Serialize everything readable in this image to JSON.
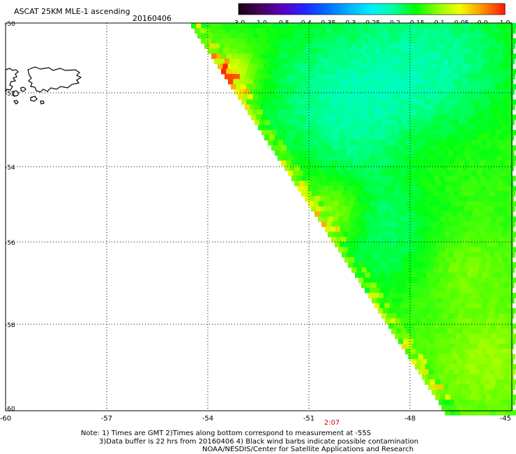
{
  "header": {
    "title": "ASCAT 25KM MLE-1 ascending",
    "date": "20160406"
  },
  "colorbar": {
    "labels": [
      "-3.0",
      "-1.0",
      "-0.5",
      "-0.4",
      "-0.35",
      "-0.3",
      "-0.25",
      "-0.2",
      "-0.15",
      "-0.1",
      "-0.05",
      "0.0",
      "1.0"
    ],
    "colors": [
      "#1a0018",
      "#4a0060",
      "#5a00c8",
      "#1e28ff",
      "#006eff",
      "#00b4ff",
      "#00f0ff",
      "#00ffa0",
      "#00ff00",
      "#8cff00",
      "#f0ff00",
      "#ff9600",
      "#ff1e00"
    ]
  },
  "axes": {
    "x_ticks": [
      "-60",
      "-57",
      "-54",
      "-51",
      "-48",
      "-45"
    ],
    "y_ticks": [
      "-50",
      "-52",
      "-54",
      "-56",
      "-58",
      "-60"
    ]
  },
  "time_label": "2:07",
  "notes": {
    "line1": "Note: 1) Times are GMT 2)Times along bottom correspond to measurement at -55S",
    "line2": "3)Data buffer is 22 hrs from 20160406 4) Black wind barbs indicate possible contamination",
    "line3": "NOAA/NESDIS/Center for Satellite Applications and Research"
  }
}
